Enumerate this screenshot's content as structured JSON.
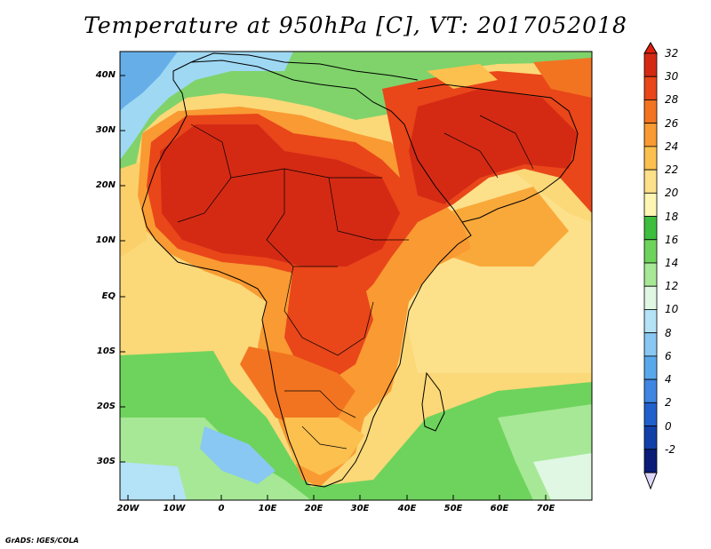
{
  "title": "Temperature at 950hPa [C], VT: 2017052018",
  "credit": "GrADS: IGES/COLA",
  "map": {
    "region": "Africa",
    "lon_range": [
      -20,
      80
    ],
    "lat_range": [
      -37,
      45
    ],
    "lon_ticks": [
      "20W",
      "10W",
      "0",
      "10E",
      "20E",
      "30E",
      "40E",
      "50E",
      "60E",
      "70E"
    ],
    "lat_ticks": [
      "40N",
      "30N",
      "20N",
      "10N",
      "EQ",
      "10S",
      "20S",
      "30S"
    ]
  },
  "colorbar": {
    "labels": [
      "32",
      "30",
      "28",
      "26",
      "24",
      "22",
      "20",
      "18",
      "16",
      "14",
      "12",
      "10",
      "8",
      "6",
      "4",
      "2",
      "0",
      "-2"
    ],
    "colors": [
      "#d42a14",
      "#e9461a",
      "#f27420",
      "#f99a32",
      "#fcc04f",
      "#fde08a",
      "#fff6b4",
      "#3dbf3d",
      "#6ed35c",
      "#a6e896",
      "#dff7e3",
      "#b4e2f6",
      "#88c8f2",
      "#5aa8ec",
      "#3e86e2",
      "#2060cc",
      "#1040a8",
      "#0a1c78"
    ],
    "top_color": "#e0200e",
    "bottom_color": "#dcd6f8"
  }
}
